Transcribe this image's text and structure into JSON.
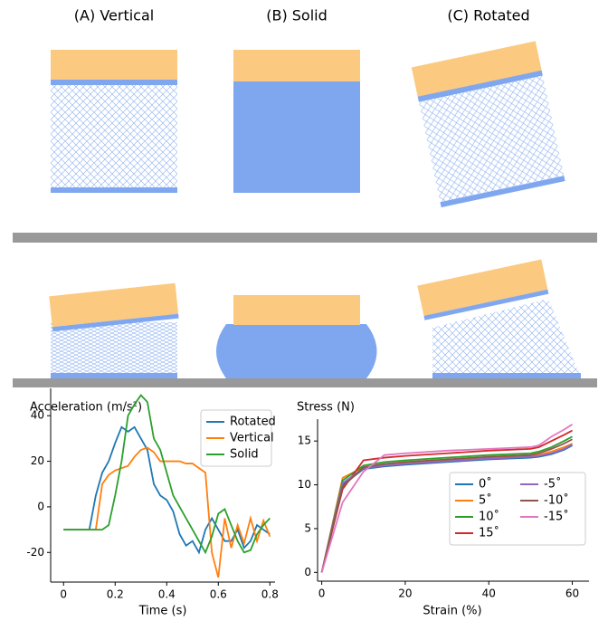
{
  "panels": [
    "(A) Vertical",
    "(B) Solid",
    "(C) Rotated"
  ],
  "chart_data": [
    {
      "type": "line",
      "ylabel": "Acceleration (m/s²)",
      "xlabel": "Time (s)",
      "x": [
        0,
        0.025,
        0.05,
        0.075,
        0.1,
        0.125,
        0.15,
        0.175,
        0.2,
        0.225,
        0.25,
        0.275,
        0.3,
        0.325,
        0.35,
        0.375,
        0.4,
        0.425,
        0.45,
        0.475,
        0.5,
        0.525,
        0.55,
        0.575,
        0.6,
        0.625,
        0.65,
        0.675,
        0.7,
        0.725,
        0.75,
        0.775,
        0.8
      ],
      "series": [
        {
          "name": "Rotated",
          "color": "#1f77b4",
          "values": [
            -10,
            -10,
            -10,
            -10,
            -10,
            5,
            15,
            20,
            28,
            35,
            33,
            35,
            30,
            25,
            10,
            5,
            3,
            -2,
            -12,
            -17,
            -15,
            -20,
            -10,
            -5,
            -10,
            -15,
            -15,
            -10,
            -18,
            -15,
            -8,
            -10,
            -12
          ]
        },
        {
          "name": "Vertical",
          "color": "#ff7f0e",
          "values": [
            -10,
            -10,
            -10,
            -10,
            -10,
            -10,
            10,
            14,
            16,
            17,
            18,
            22,
            25,
            26,
            24,
            20,
            20,
            20,
            20,
            19,
            19,
            17,
            15,
            -20,
            -31,
            -5,
            -18,
            -8,
            -16,
            -5,
            -15,
            -6,
            -13
          ]
        },
        {
          "name": "Solid",
          "color": "#2ca02c",
          "values": [
            -10,
            -10,
            -10,
            -10,
            -10,
            -10,
            -10,
            -8,
            5,
            20,
            40,
            45,
            49,
            46,
            30,
            25,
            15,
            5,
            0,
            -5,
            -10,
            -15,
            -20,
            -13,
            -3,
            -1,
            -8,
            -15,
            -20,
            -19,
            -12,
            -8,
            -5
          ]
        }
      ],
      "xlim": [
        -0.05,
        0.82
      ],
      "ylim": [
        -33,
        52
      ],
      "xticks": [
        0,
        0.2,
        0.4,
        0.6,
        0.8
      ],
      "yticks": [
        -20,
        0,
        20,
        40
      ],
      "legend": "upper right",
      "legend_columns": 1
    },
    {
      "type": "line",
      "ylabel": "Stress (N)",
      "xlabel": "Strain (%)",
      "x": [
        0,
        5,
        10,
        15,
        20,
        30,
        40,
        50,
        52,
        55,
        58,
        60
      ],
      "series": [
        {
          "name": "0˚",
          "color": "#1f77b4",
          "values": [
            0,
            10,
            11.8,
            12.1,
            12.3,
            12.6,
            12.9,
            13.1,
            13.2,
            13.5,
            14,
            14.5
          ]
        },
        {
          "name": "5˚",
          "color": "#ff7f0e",
          "values": [
            0,
            10.8,
            12,
            12.3,
            12.5,
            12.8,
            13.1,
            13.3,
            13.4,
            13.8,
            14.3,
            14.7
          ]
        },
        {
          "name": "10˚",
          "color": "#2ca02c",
          "values": [
            0,
            10.5,
            12.2,
            12.6,
            12.8,
            13.1,
            13.4,
            13.6,
            13.8,
            14.3,
            15,
            15.5
          ]
        },
        {
          "name": "15˚",
          "color": "#d62728",
          "values": [
            0,
            9.5,
            12.8,
            13.1,
            13.3,
            13.6,
            13.9,
            14.1,
            14.3,
            15,
            15.7,
            16.2
          ]
        },
        {
          "name": "-5˚",
          "color": "#9467bd",
          "values": [
            0,
            10.2,
            11.9,
            12.2,
            12.4,
            12.7,
            13,
            13.2,
            13.3,
            13.6,
            14.1,
            14.6
          ]
        },
        {
          "name": "-10˚",
          "color": "#8c564b",
          "values": [
            0,
            9.8,
            12,
            12.4,
            12.6,
            12.9,
            13.2,
            13.4,
            13.6,
            14.1,
            14.7,
            15.2
          ]
        },
        {
          "name": "-15˚",
          "color": "#e377c2",
          "values": [
            0,
            8,
            11.5,
            13.4,
            13.6,
            13.9,
            14.1,
            14.3,
            14.5,
            15.5,
            16.3,
            16.9
          ]
        }
      ],
      "xlim": [
        -1,
        64
      ],
      "ylim": [
        -1,
        17.5
      ],
      "xticks": [
        0,
        20,
        40,
        60
      ],
      "yticks": [
        0,
        5,
        10,
        15
      ],
      "legend": "lower right",
      "legend_columns": 2
    }
  ]
}
